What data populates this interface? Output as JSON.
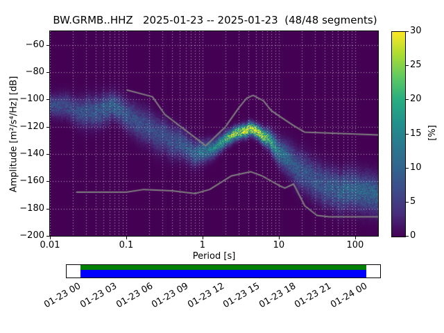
{
  "title": "BW.GRMB..HHZ   2025-01-23 -- 2025-01-23  (48/48 segments)",
  "axes": {
    "xlabel": "Period [s]",
    "ylabel": "Amplitude [m²/s⁴/Hz] [dB]",
    "xticks": [
      {
        "v": 0.01,
        "label": "0.01"
      },
      {
        "v": 0.1,
        "label": "0.1"
      },
      {
        "v": 1,
        "label": "1"
      },
      {
        "v": 10,
        "label": "10"
      },
      {
        "v": 100,
        "label": "100"
      }
    ],
    "yticks": [
      {
        "v": -60,
        "label": "−60"
      },
      {
        "v": -80,
        "label": "−80"
      },
      {
        "v": -100,
        "label": "−100"
      },
      {
        "v": -120,
        "label": "−120"
      },
      {
        "v": -140,
        "label": "−140"
      },
      {
        "v": -160,
        "label": "−160"
      },
      {
        "v": -180,
        "label": "−180"
      },
      {
        "v": -200,
        "label": "−200"
      }
    ]
  },
  "colorbar": {
    "label": "[%]",
    "min": 0,
    "max": 30,
    "ticks": [
      {
        "v": 0,
        "label": "0"
      },
      {
        "v": 5,
        "label": "5"
      },
      {
        "v": 10,
        "label": "10"
      },
      {
        "v": 15,
        "label": "15"
      },
      {
        "v": 20,
        "label": "20"
      },
      {
        "v": 25,
        "label": "25"
      },
      {
        "v": 30,
        "label": "30"
      }
    ],
    "colormap": "viridis",
    "colormap_anchors": [
      "#440154",
      "#472d7b",
      "#3e4a89",
      "#32648e",
      "#2a788e",
      "#21918c",
      "#27ad81",
      "#5ec962",
      "#aadc32",
      "#fde725"
    ]
  },
  "chart_data": {
    "type": "heatmap",
    "subtype": "ppsd-probability-histogram",
    "station": "BW.GRMB..HHZ",
    "date_range": "2025-01-23 -- 2025-01-23",
    "segments": "48/48",
    "x_scale": "log",
    "grid": true,
    "xlim_period": [
      0.01,
      200
    ],
    "ylim_db": [
      -200,
      -50
    ],
    "prob_range_percent": [
      0,
      30
    ],
    "background_color": "#440154",
    "grid_color": "rgba(255,255,255,0.65)",
    "noise_model_color": "#7f7f7f",
    "mode_ridge": {
      "period": [
        0.01,
        0.02,
        0.03,
        0.05,
        0.07,
        0.1,
        0.15,
        0.22,
        0.3,
        0.5,
        0.7,
        1.0,
        1.5,
        2.0,
        3.0,
        4.0,
        5.0,
        7.0,
        10,
        15,
        20,
        30,
        50,
        70,
        100,
        150,
        200
      ],
      "db": [
        -103,
        -108,
        -110,
        -107,
        -105,
        -110,
        -116,
        -120,
        -124,
        -131,
        -136,
        -139,
        -138,
        -133,
        -127,
        -125,
        -126,
        -131,
        -140,
        -149,
        -155,
        -161,
        -166,
        -168,
        -170,
        -170,
        -170
      ],
      "peak_percent": [
        7,
        7,
        8,
        9,
        10,
        8,
        7,
        7,
        7,
        8,
        9,
        12,
        14,
        18,
        26,
        30,
        28,
        20,
        13,
        9,
        8,
        8,
        9,
        10,
        10,
        10,
        10
      ],
      "sigma_db": [
        5,
        6,
        7,
        7,
        6,
        7,
        8,
        8,
        8,
        7,
        6,
        5,
        4,
        3.5,
        3,
        3,
        3,
        4,
        6,
        8,
        9,
        9,
        9,
        9,
        9,
        9,
        9
      ]
    },
    "noise_models": {
      "high": [
        [
          0.1,
          -93
        ],
        [
          0.22,
          -98
        ],
        [
          0.32,
          -111
        ],
        [
          0.8,
          -128
        ],
        [
          1.1,
          -134
        ],
        [
          2.0,
          -120
        ],
        [
          3.0,
          -106
        ],
        [
          3.8,
          -99
        ],
        [
          4.6,
          -97
        ],
        [
          6.3,
          -101
        ],
        [
          7.9,
          -108
        ],
        [
          10,
          -112
        ],
        [
          15.4,
          -119
        ],
        [
          21.9,
          -124
        ],
        [
          200,
          -126
        ]
      ],
      "low": [
        [
          0.022,
          -168
        ],
        [
          0.1,
          -168
        ],
        [
          0.17,
          -166
        ],
        [
          0.4,
          -167
        ],
        [
          0.8,
          -169
        ],
        [
          1.24,
          -166
        ],
        [
          2.4,
          -156
        ],
        [
          4.3,
          -153
        ],
        [
          6.0,
          -156
        ],
        [
          10,
          -163
        ],
        [
          12,
          -165
        ],
        [
          15.6,
          -162
        ],
        [
          21.9,
          -178
        ],
        [
          31.6,
          -185
        ],
        [
          45,
          -186
        ],
        [
          200,
          -186
        ]
      ]
    }
  },
  "timeline": {
    "labels": [
      "01-23 00",
      "01-23 03",
      "01-23 06",
      "01-23 09",
      "01-23 12",
      "01-23 15",
      "01-23 18",
      "01-23 21",
      "01-24 00"
    ],
    "data_start_frac": 0.044,
    "data_end_frac": 0.956,
    "green_color": "#008000",
    "blue_color": "#0000ff",
    "background": "#ffffff",
    "border_color": "#000000"
  }
}
